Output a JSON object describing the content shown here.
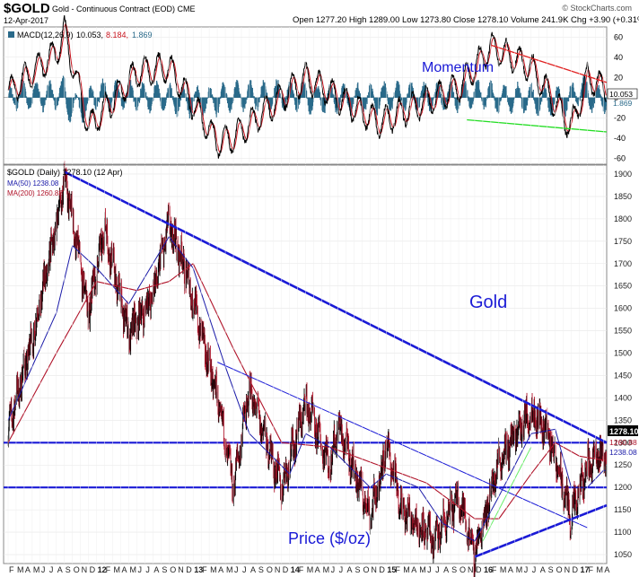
{
  "header": {
    "symbol": "$GOLD",
    "description": "Gold - Continuous Contract (EOD) CME",
    "date": "12-Apr-2017",
    "quote": "Open 1277.20  High 1289.00  Low 1273.80  Close 1278.10  Volume 241.9K  Chg +3.90 (+0.31%)",
    "brand": "© StockCharts.com"
  },
  "macd_panel": {
    "legend": [
      "MACD(12,26,9)",
      "10.053,",
      "8.184,",
      "1.869"
    ],
    "annotation": "Momentum",
    "ticks": [
      "60",
      "40",
      "20",
      "0",
      "-20",
      "-40",
      "-60"
    ],
    "last_value": "10.053",
    "hist_value": "1.869"
  },
  "price_panel": {
    "legend": [
      "$GOLD (Daily) 1278.10 (12 Apr)",
      "MA(50) 1238.08",
      "MA(200) 1260.88"
    ],
    "ticks": [
      "1900",
      "1850",
      "1800",
      "1750",
      "1700",
      "1650",
      "1600",
      "1550",
      "1500",
      "1450",
      "1400",
      "1350",
      "1300",
      "1250",
      "1200",
      "1150",
      "1100",
      "1050"
    ],
    "annotation_gold": "Gold",
    "annotation_price": "Price ($/oz)",
    "last_close": "1278.10",
    "ma50_tag": "1238.08",
    "ma200_tag": "1260.88"
  },
  "x_axis": {
    "labels": [
      "F",
      "M",
      "A",
      "M",
      "J",
      "J",
      "A",
      "S",
      "O",
      "N",
      "D",
      "12",
      "F",
      "M",
      "A",
      "M",
      "J",
      "J",
      "A",
      "S",
      "O",
      "N",
      "D",
      "13",
      "F",
      "M",
      "A",
      "M",
      "J",
      "J",
      "A",
      "S",
      "O",
      "N",
      "D",
      "14",
      "F",
      "M",
      "A",
      "M",
      "J",
      "J",
      "A",
      "S",
      "O",
      "N",
      "D",
      "15",
      "F",
      "M",
      "A",
      "M",
      "J",
      "J",
      "A",
      "S",
      "O",
      "N",
      "D",
      "16",
      "F",
      "M",
      "A",
      "M",
      "J",
      "J",
      "A",
      "S",
      "O",
      "N",
      "D",
      "17",
      "F",
      "M",
      "A"
    ],
    "bold": [
      "12",
      "13",
      "14",
      "15",
      "16",
      "17"
    ]
  },
  "colors": {
    "price_bars": "#000000",
    "ma50": "#1a1aa8",
    "ma200": "#b0142a",
    "trendline": "#1a1ad6",
    "macd_line": "#000000",
    "signal_line": "#c8141e",
    "histogram": "#2a6a8a",
    "upper_macd_trend": "#e02020",
    "lower_macd_trend": "#22dd22",
    "green_trend": "#66ee66"
  },
  "chart_data": [
    {
      "type": "line",
      "title": "$GOLD (Daily) 1278.10 (12 Apr)",
      "x_range": [
        "2011-02",
        "2017-04"
      ],
      "ylim": [
        1030,
        1920
      ],
      "series": [
        {
          "name": "$GOLD (Daily)",
          "x": [
            "2011-02",
            "2011-05",
            "2011-08",
            "2011-09",
            "2011-12",
            "2012-02",
            "2012-05",
            "2012-08",
            "2012-10",
            "2012-12",
            "2013-04",
            "2013-06",
            "2013-08",
            "2013-12",
            "2014-03",
            "2014-06",
            "2014-07",
            "2014-11",
            "2014-12",
            "2015-01",
            "2015-03",
            "2015-07",
            "2015-10",
            "2015-12",
            "2016-03",
            "2016-07",
            "2016-09",
            "2016-12",
            "2017-02",
            "2017-04"
          ],
          "values": [
            1330,
            1530,
            1780,
            1900,
            1590,
            1780,
            1540,
            1630,
            1790,
            1690,
            1400,
            1200,
            1420,
            1200,
            1390,
            1250,
            1340,
            1140,
            1200,
            1300,
            1150,
            1080,
            1180,
            1050,
            1260,
            1370,
            1330,
            1130,
            1250,
            1278.1
          ]
        },
        {
          "name": "MA(50)",
          "x": [
            "2011-02",
            "2011-08",
            "2011-10",
            "2012-01",
            "2012-05",
            "2012-10",
            "2013-01",
            "2013-05",
            "2013-08",
            "2014-01",
            "2014-03",
            "2014-06",
            "2014-11",
            "2015-01",
            "2015-05",
            "2015-08",
            "2015-12",
            "2016-03",
            "2016-07",
            "2016-10",
            "2016-12",
            "2017-02",
            "2017-04"
          ],
          "values": [
            1350,
            1590,
            1740,
            1690,
            1610,
            1760,
            1690,
            1470,
            1320,
            1230,
            1320,
            1290,
            1200,
            1230,
            1200,
            1120,
            1080,
            1180,
            1320,
            1330,
            1200,
            1200,
            1238.08
          ]
        },
        {
          "name": "MA(200)",
          "x": [
            "2011-02",
            "2011-08",
            "2012-01",
            "2012-06",
            "2012-10",
            "2013-01",
            "2013-06",
            "2013-12",
            "2014-06",
            "2014-12",
            "2015-06",
            "2015-12",
            "2016-03",
            "2016-07",
            "2016-10",
            "2017-01",
            "2017-04"
          ],
          "values": [
            1300,
            1500,
            1660,
            1640,
            1660,
            1700,
            1510,
            1300,
            1290,
            1250,
            1210,
            1130,
            1130,
            1230,
            1300,
            1270,
            1260.88
          ]
        }
      ]
    },
    {
      "type": "line",
      "title": "MACD(12,26,9)",
      "ylim": [
        -65,
        70
      ],
      "series": [
        {
          "name": "MACD",
          "x": [
            "2011-02",
            "2011-08",
            "2011-09",
            "2011-12",
            "2012-06",
            "2012-10",
            "2013-04",
            "2013-06",
            "2014-03",
            "2014-12",
            "2015-10",
            "2016-02",
            "2016-07",
            "2016-12",
            "2017-02",
            "2017-04"
          ],
          "values": [
            5,
            45,
            65,
            -30,
            25,
            30,
            -45,
            -40,
            20,
            -25,
            10,
            50,
            30,
            -30,
            20,
            10.053
          ]
        },
        {
          "name": "Signal",
          "x": [
            "2017-04"
          ],
          "values": [
            8.184
          ]
        },
        {
          "name": "Histogram",
          "x": [
            "2017-04"
          ],
          "values": [
            1.869
          ]
        }
      ]
    }
  ]
}
